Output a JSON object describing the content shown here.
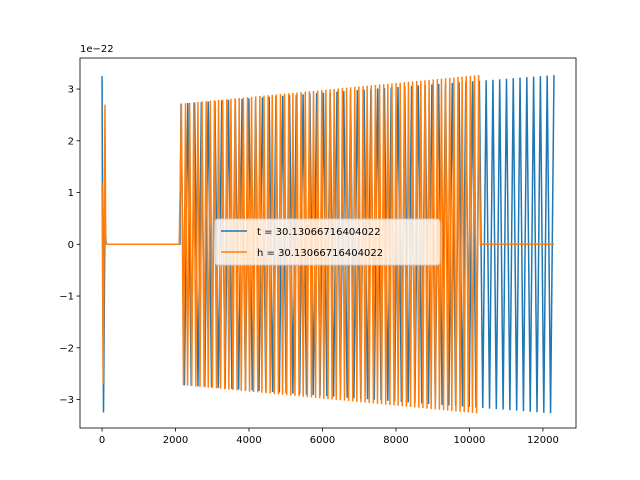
{
  "chart_data": {
    "type": "line",
    "offset_text": "1e−22",
    "xlim": [
      -600,
      12900
    ],
    "ylim": [
      -3.55,
      3.6
    ],
    "x_ticks": [
      0,
      2000,
      4000,
      6000,
      8000,
      10000,
      12000
    ],
    "y_ticks": [
      -3,
      -2,
      -1,
      0,
      1,
      2,
      3
    ],
    "x_tick_labels": [
      "0",
      "2000",
      "4000",
      "6000",
      "8000",
      "10000",
      "12000"
    ],
    "y_tick_labels": [
      "−3",
      "−2",
      "−1",
      "0",
      "1",
      "2",
      "3"
    ],
    "grid": false,
    "legend": {
      "placement": "center"
    },
    "series": [
      {
        "name": "t = 30.13066716404022",
        "color": "#1f77b4",
        "x": [
          0,
          20,
          40,
          60,
          80,
          100,
          120,
          2100,
          2140,
          2300,
          2500,
          3000,
          4000,
          5000,
          6000,
          7000,
          8000,
          9000,
          10000,
          10300,
          11000,
          12000,
          12300
        ],
        "y": [
          3.25,
          1.2,
          -3.25,
          0.5,
          1.0,
          0.0,
          0.0,
          0.0,
          2.7,
          -2.7,
          2.72,
          -2.75,
          2.85,
          -2.9,
          2.95,
          -3.0,
          3.05,
          -3.1,
          3.15,
          -3.2,
          3.22,
          -3.25,
          3.27
        ],
        "oscillation": {
          "x_start": 2150,
          "x_end": 12300,
          "cycles": 55,
          "amplitude_start": 2.72,
          "amplitude_end": 3.27,
          "lead_in": {
            "x_start": 0,
            "x_end": 110,
            "amplitude": 3.25
          }
        }
      },
      {
        "name": "h = 30.13066716404022",
        "color": "#ff7f0e",
        "x": [
          0,
          40,
          120,
          2100,
          2150,
          3000,
          5000,
          7000,
          9000,
          10250,
          10300,
          12300
        ],
        "y": [
          1.2,
          -2.7,
          2.7,
          0.0,
          1.2,
          -2.85,
          2.95,
          -3.05,
          3.15,
          -3.27,
          0.0,
          0.0
        ],
        "oscillation": {
          "x_start": 0,
          "x_end": 10250,
          "cycles": 73,
          "amplitude_start": 2.72,
          "amplitude_end": 3.27,
          "flat_segments": [
            [
              100,
              2100
            ],
            [
              10300,
              12300
            ]
          ]
        }
      }
    ]
  }
}
